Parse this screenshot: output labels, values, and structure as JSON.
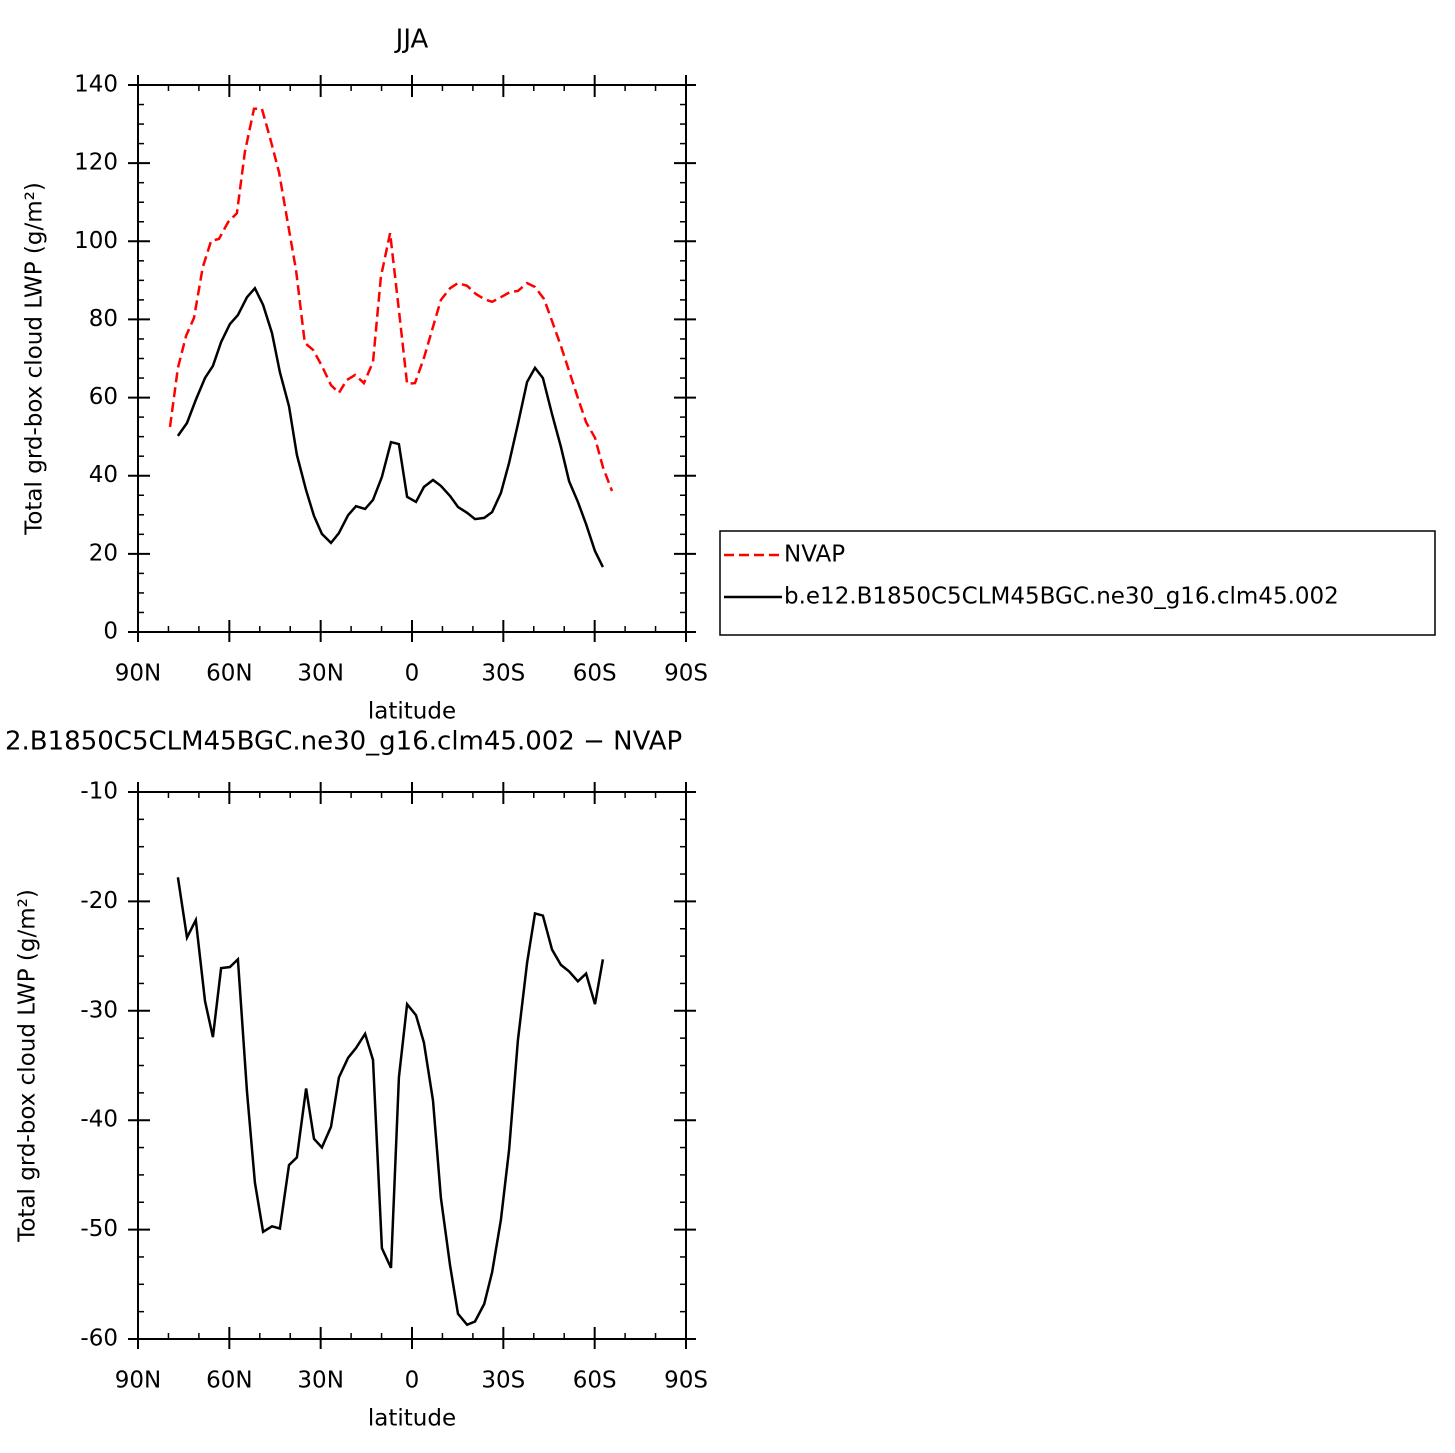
{
  "chart_data": [
    {
      "type": "line",
      "title": "JJA",
      "xlabel": "latitude",
      "ylabel": "Total grd-box cloud LWP (g/m²)",
      "xlim": [
        90,
        -90
      ],
      "ylim": [
        0,
        140
      ],
      "xticks": [
        {
          "value": 90,
          "label": "90N"
        },
        {
          "value": 60,
          "label": "60N"
        },
        {
          "value": 30,
          "label": "30N"
        },
        0,
        {
          "value": -30,
          "label": "30S"
        },
        {
          "value": -60,
          "label": "60S"
        },
        {
          "value": -90,
          "label": "90S"
        }
      ],
      "yticks": [
        0,
        20,
        40,
        60,
        80,
        100,
        120,
        140
      ],
      "legend": "right",
      "series": [
        {
          "name": "NVAP",
          "color": "#ff0000",
          "line_style": "dashed",
          "x": [
            79.5,
            76.9,
            74.2,
            71.6,
            68.7,
            66.0,
            63.4,
            60.4,
            57.5,
            54.9,
            51.9,
            49.3,
            46.6,
            43.7,
            41.1,
            38.1,
            35.2,
            32.5,
            29.6,
            26.6,
            24.0,
            21.4,
            18.7,
            15.8,
            12.8,
            10.2,
            7.2,
            4.3,
            1.6,
            -1.0,
            -3.9,
            -6.6,
            -9.5,
            -12.5,
            -15.1,
            -18.1,
            -21.0,
            -23.7,
            -26.3,
            -29.2,
            -32.2,
            -34.8,
            -37.8,
            -40.4,
            -43.4,
            -46.0,
            -48.9,
            -51.6,
            -54.5,
            -57.2,
            -60.1,
            -62.7,
            -65.7
          ],
          "values": [
            52.5,
            67.6,
            75.8,
            80.4,
            93.4,
            100.1,
            100.6,
            104.9,
            107.2,
            122.9,
            133.9,
            133.9,
            126.4,
            117.7,
            106.0,
            92.7,
            74.0,
            72.2,
            68.1,
            63.2,
            61.2,
            64.5,
            65.8,
            63.7,
            69.1,
            90.9,
            102.1,
            82.4,
            63.5,
            63.7,
            70.1,
            77.3,
            85.0,
            88.0,
            89.3,
            88.6,
            86.5,
            85.2,
            84.5,
            85.7,
            87.0,
            87.3,
            89.3,
            88.3,
            85.2,
            79.6,
            73.2,
            66.8,
            59.9,
            53.7,
            49.7,
            42.2,
            36.1
          ]
        },
        {
          "name": "b.e12.B1850C5CLM45BGC.ne30_g16.clm45.002",
          "color": "#000000",
          "line_style": "solid",
          "x": [
            76.9,
            73.9,
            71.0,
            68.0,
            65.4,
            62.7,
            59.8,
            57.2,
            54.2,
            51.6,
            48.9,
            46.0,
            43.4,
            40.4,
            37.8,
            34.8,
            32.2,
            29.6,
            26.6,
            24.0,
            21.0,
            18.4,
            15.4,
            12.8,
            9.9,
            6.9,
            4.3,
            1.6,
            -1.3,
            -3.9,
            -6.9,
            -9.5,
            -12.5,
            -15.1,
            -18.1,
            -20.7,
            -23.7,
            -26.3,
            -29.2,
            -31.9,
            -34.8,
            -37.8,
            -40.4,
            -43.0,
            -46.0,
            -48.9,
            -51.6,
            -54.5,
            -57.2,
            -60.1,
            -62.7
          ],
          "values": [
            50.2,
            53.5,
            59.4,
            65.0,
            68.1,
            74.2,
            78.8,
            81.1,
            85.7,
            88.0,
            83.7,
            76.5,
            66.5,
            57.8,
            45.3,
            36.3,
            29.7,
            25.1,
            22.8,
            25.3,
            29.9,
            32.2,
            31.5,
            33.8,
            39.7,
            48.6,
            48.1,
            34.6,
            33.3,
            37.1,
            38.9,
            37.4,
            34.8,
            32.0,
            30.5,
            28.9,
            29.2,
            30.7,
            35.6,
            43.3,
            53.2,
            64.0,
            67.6,
            65.0,
            55.8,
            47.4,
            38.6,
            33.3,
            27.6,
            20.7,
            16.6
          ]
        }
      ]
    },
    {
      "type": "line",
      "title": "2.B1850C5CLM45BGC.ne30_g16.clm45.002 − NVAP",
      "xlabel": "latitude",
      "ylabel": "Total grd-box cloud LWP (g/m²)",
      "xlim": [
        90,
        -90
      ],
      "ylim": [
        -60,
        -10
      ],
      "xticks": [
        {
          "value": 90,
          "label": "90N"
        },
        {
          "value": 60,
          "label": "60N"
        },
        {
          "value": 30,
          "label": "30N"
        },
        0,
        {
          "value": -30,
          "label": "30S"
        },
        {
          "value": -60,
          "label": "60S"
        },
        {
          "value": -90,
          "label": "90S"
        }
      ],
      "yticks": [
        -60,
        -50,
        -40,
        -30,
        -20,
        -10
      ],
      "series": [
        {
          "color": "#000000",
          "line_style": "solid",
          "x": [
            76.9,
            73.9,
            71.0,
            68.0,
            65.4,
            62.7,
            59.8,
            57.2,
            54.2,
            51.6,
            48.9,
            46.0,
            43.4,
            40.4,
            37.8,
            34.8,
            32.2,
            29.6,
            26.6,
            24.0,
            21.0,
            18.4,
            15.4,
            12.8,
            9.9,
            6.9,
            4.3,
            1.6,
            -1.3,
            -3.9,
            -6.9,
            -9.5,
            -12.5,
            -15.1,
            -18.1,
            -20.7,
            -23.7,
            -26.3,
            -29.2,
            -31.9,
            -34.8,
            -37.8,
            -40.4,
            -43.0,
            -46.0,
            -48.9,
            -51.6,
            -54.5,
            -57.2,
            -60.1,
            -62.7
          ],
          "values": [
            -17.8,
            -23.3,
            -21.7,
            -29.1,
            -32.4,
            -26.1,
            -26.0,
            -25.3,
            -37.4,
            -45.7,
            -50.2,
            -49.7,
            -49.9,
            -44.1,
            -43.4,
            -37.1,
            -41.7,
            -42.5,
            -40.6,
            -36.1,
            -34.3,
            -33.4,
            -32.1,
            -34.5,
            -51.7,
            -53.5,
            -36.1,
            -29.4,
            -30.4,
            -32.9,
            -38.2,
            -47.1,
            -53.3,
            -57.7,
            -58.7,
            -58.4,
            -56.8,
            -53.9,
            -49.1,
            -42.7,
            -32.7,
            -25.6,
            -21.1,
            -21.3,
            -24.4,
            -25.8,
            -26.4,
            -27.3,
            -26.6,
            -29.4,
            -25.3
          ]
        }
      ]
    }
  ]
}
